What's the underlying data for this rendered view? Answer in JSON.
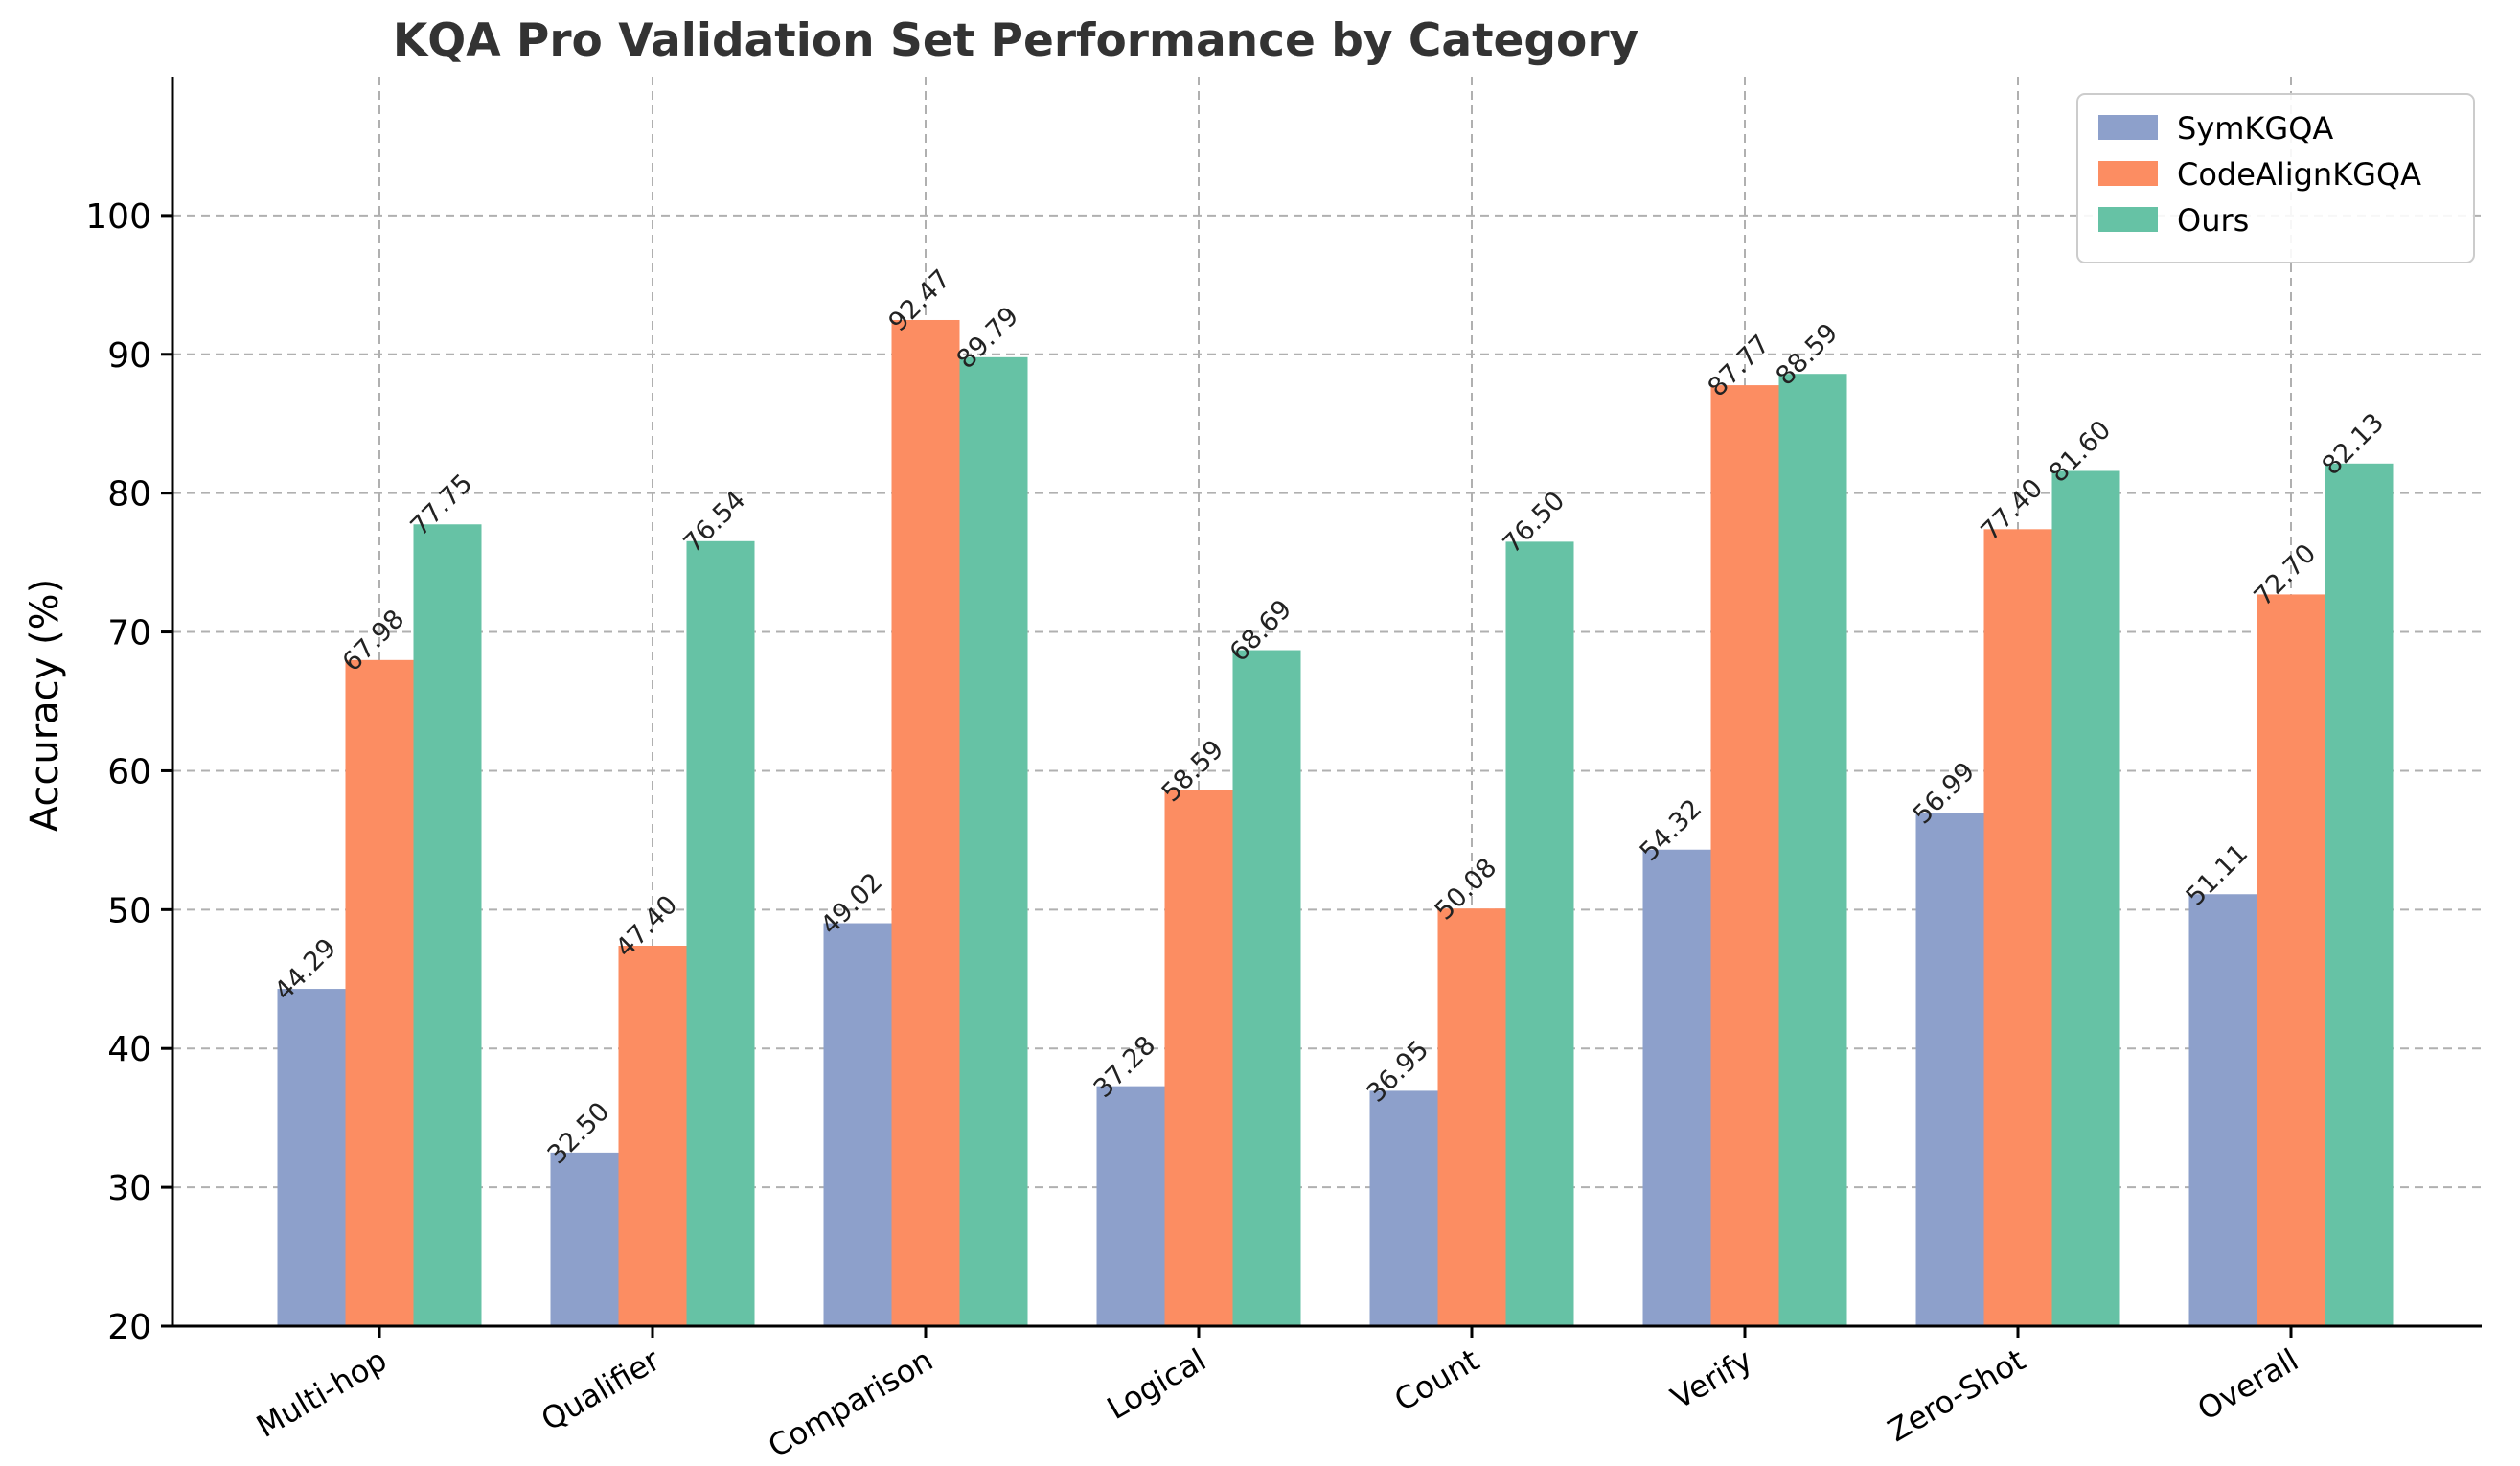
{
  "chart_data": {
    "type": "bar",
    "title": "KQA Pro Validation Set Performance by Category",
    "xlabel": "",
    "ylabel": "Accuracy (%)",
    "ylim": [
      20,
      110
    ],
    "yticks": [
      20,
      30,
      40,
      50,
      60,
      70,
      80,
      90,
      100
    ],
    "grid": true,
    "legend_position": "top-right",
    "categories": [
      "Multi-hop",
      "Qualifier",
      "Comparison",
      "Logical",
      "Count",
      "Verify",
      "Zero-Shot",
      "Overall"
    ],
    "series": [
      {
        "name": "SymKGQA",
        "color": "#8da0cb",
        "values": [
          44.29,
          32.5,
          49.02,
          37.28,
          36.95,
          54.32,
          56.99,
          51.11
        ],
        "labels": [
          "44.29",
          "32.50",
          "49.02",
          "37.28",
          "36.95",
          "54.32",
          "56.99",
          "51.11"
        ]
      },
      {
        "name": "CodeAlignKGQA",
        "color": "#fc8d62",
        "values": [
          67.98,
          47.4,
          92.47,
          58.59,
          50.08,
          87.77,
          77.4,
          72.7
        ],
        "labels": [
          "67.98",
          "47.40",
          "92.47",
          "58.59",
          "50.08",
          "87.77",
          "77.40",
          "72.70"
        ]
      },
      {
        "name": "Ours",
        "color": "#66c2a5",
        "values": [
          77.75,
          76.54,
          89.79,
          68.69,
          76.5,
          88.59,
          81.6,
          82.13
        ],
        "labels": [
          "77.75",
          "76.54",
          "89.79",
          "68.69",
          "76.50",
          "88.59",
          "81.60",
          "82.13"
        ]
      }
    ]
  }
}
